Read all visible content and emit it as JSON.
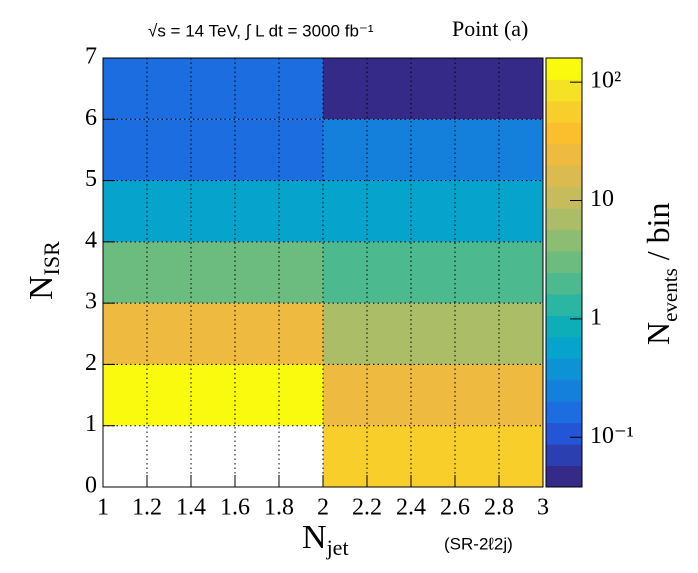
{
  "chart_data": {
    "type": "heatmap",
    "title": "√s = 14 TeV, ∫ L dt = 3000 fb⁻¹",
    "annotations": [
      "Point (a)",
      "(SR-2ℓ2j)"
    ],
    "x_label": {
      "main": "N",
      "sub": "jet"
    },
    "y_label": {
      "main": "N",
      "sub": "ISR"
    },
    "z_label": {
      "main": "N",
      "sub": "events",
      "rest": " / bin"
    },
    "xbins": [
      1,
      2,
      3
    ],
    "ybins": [
      0,
      1,
      2,
      3,
      4,
      5,
      6,
      7
    ],
    "values": [
      [
        null,
        50
      ],
      [
        150,
        25
      ],
      [
        25,
        8
      ],
      [
        3,
        2
      ],
      [
        0.6,
        0.5
      ],
      [
        0.15,
        0.25
      ],
      [
        0.15,
        0.05
      ]
    ],
    "xlim": [
      1,
      3
    ],
    "ylim": [
      0,
      7
    ],
    "xticks": [
      1,
      1.2,
      1.4,
      1.6,
      1.8,
      2,
      2.2,
      2.4,
      2.6,
      2.8,
      3
    ],
    "yticks": [
      0,
      1,
      2,
      3,
      4,
      5,
      6,
      7
    ],
    "zlim": [
      0.038,
      160
    ],
    "zlog": true,
    "zticks": [
      {
        "value": 0.1,
        "label": "10⁻¹"
      },
      1,
      10,
      {
        "value": 100,
        "label": "10²"
      }
    ],
    "grid": true,
    "palette": [
      "#352a87",
      "#2c3fb0",
      "#2455d6",
      "#1b6de0",
      "#1480dc",
      "#0d93d5",
      "#06a3cc",
      "#0eaeb9",
      "#2bb6a4",
      "#4cb98f",
      "#6cbb7f",
      "#8dbd73",
      "#acbd67",
      "#c6bc5c",
      "#dbba4f",
      "#eeba3f",
      "#fbbf2d",
      "#f8cf2a",
      "#f5e224",
      "#f9fa0e"
    ]
  }
}
